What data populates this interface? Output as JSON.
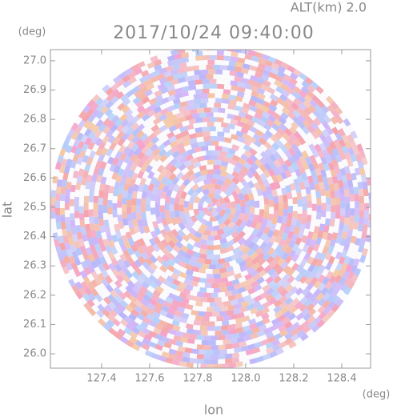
{
  "chart_data": {
    "type": "radar-ppi",
    "title": "2017/10/24 09:40:00",
    "subtitle": "ALT(km) 2.0",
    "x_label": "lon",
    "y_label": "lat",
    "x_unit": "(deg)",
    "y_unit": "(deg)",
    "xlim": [
      127.187,
      128.52
    ],
    "ylim": [
      25.951,
      27.038
    ],
    "xticks": [
      127.4,
      127.6,
      127.8,
      {
        "value": 128,
        "label": "128.0"
      },
      128.2,
      128.4
    ],
    "yticks": [
      {
        "value": 26,
        "label": "26.0"
      },
      26.1,
      26.2,
      26.3,
      26.4,
      26.5,
      26.6,
      26.7,
      26.8,
      26.9,
      {
        "value": 27,
        "label": "27.0"
      }
    ]
  }
}
